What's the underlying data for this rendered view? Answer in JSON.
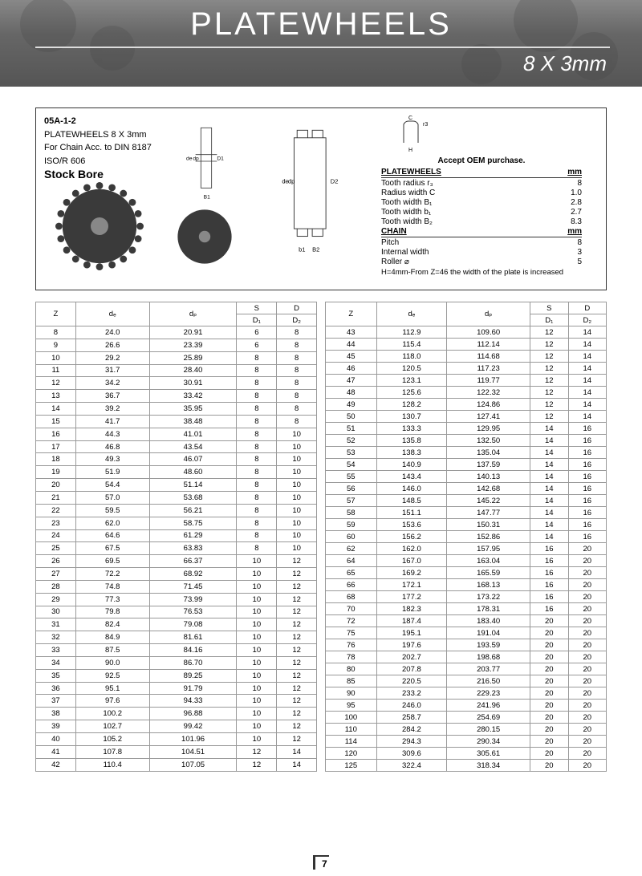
{
  "header": {
    "title": "PLATEWHEELS",
    "subtitle": "8 X 3mm"
  },
  "info": {
    "code": "05A-1-2",
    "line1": "PLATEWHEELS 8 X 3mm",
    "line2": "For Chain Acc. to DIN 8187",
    "line3": "ISO/R 606",
    "stockbore": "Stock Bore"
  },
  "specs": {
    "accept": "Accept OEM purchase.",
    "hdr1": "PLATEWHEELS",
    "hdr1u": "mm",
    "rows1": [
      {
        "k": "Tooth radius r₃",
        "v": "8"
      },
      {
        "k": "Radius width C",
        "v": "1.0"
      },
      {
        "k": "Tooth width B₁",
        "v": "2.8"
      },
      {
        "k": "Tooth width b₁",
        "v": "2.7"
      },
      {
        "k": "Tooth width B₂",
        "v": "8.3"
      }
    ],
    "hdr2": "CHAIN",
    "hdr2u": "mm",
    "rows2": [
      {
        "k": "Pitch",
        "v": "8"
      },
      {
        "k": "Internal width",
        "v": "3"
      },
      {
        "k": "Roller ⌀",
        "v": "5"
      }
    ],
    "note": "H=4mm-From Z=46 the width of the plate is increased"
  },
  "table_headers": {
    "z": "Z",
    "de": "dₑ",
    "dp": "dₚ",
    "s": "S",
    "d": "D",
    "d1": "D₁",
    "d2": "D₂"
  },
  "table1_breaks": [
    13,
    18,
    23,
    28,
    33,
    38
  ],
  "table1": [
    [
      "8",
      "24.0",
      "20.91",
      "6",
      "8"
    ],
    [
      "9",
      "26.6",
      "23.39",
      "6",
      "8"
    ],
    [
      "10",
      "29.2",
      "25.89",
      "8",
      "8"
    ],
    [
      "11",
      "31.7",
      "28.40",
      "8",
      "8"
    ],
    [
      "12",
      "34.2",
      "30.91",
      "8",
      "8"
    ],
    [
      "13",
      "36.7",
      "33.42",
      "8",
      "8"
    ],
    [
      "14",
      "39.2",
      "35.95",
      "8",
      "8"
    ],
    [
      "15",
      "41.7",
      "38.48",
      "8",
      "8"
    ],
    [
      "16",
      "44.3",
      "41.01",
      "8",
      "10"
    ],
    [
      "17",
      "46.8",
      "43.54",
      "8",
      "10"
    ],
    [
      "18",
      "49.3",
      "46.07",
      "8",
      "10"
    ],
    [
      "19",
      "51.9",
      "48.60",
      "8",
      "10"
    ],
    [
      "20",
      "54.4",
      "51.14",
      "8",
      "10"
    ],
    [
      "21",
      "57.0",
      "53.68",
      "8",
      "10"
    ],
    [
      "22",
      "59.5",
      "56.21",
      "8",
      "10"
    ],
    [
      "23",
      "62.0",
      "58.75",
      "8",
      "10"
    ],
    [
      "24",
      "64.6",
      "61.29",
      "8",
      "10"
    ],
    [
      "25",
      "67.5",
      "63.83",
      "8",
      "10"
    ],
    [
      "26",
      "69.5",
      "66.37",
      "10",
      "12"
    ],
    [
      "27",
      "72.2",
      "68.92",
      "10",
      "12"
    ],
    [
      "28",
      "74.8",
      "71.45",
      "10",
      "12"
    ],
    [
      "29",
      "77.3",
      "73.99",
      "10",
      "12"
    ],
    [
      "30",
      "79.8",
      "76.53",
      "10",
      "12"
    ],
    [
      "31",
      "82.4",
      "79.08",
      "10",
      "12"
    ],
    [
      "32",
      "84.9",
      "81.61",
      "10",
      "12"
    ],
    [
      "33",
      "87.5",
      "84.16",
      "10",
      "12"
    ],
    [
      "34",
      "90.0",
      "86.70",
      "10",
      "12"
    ],
    [
      "35",
      "92.5",
      "89.25",
      "10",
      "12"
    ],
    [
      "36",
      "95.1",
      "91.79",
      "10",
      "12"
    ],
    [
      "37",
      "97.6",
      "94.33",
      "10",
      "12"
    ],
    [
      "38",
      "100.2",
      "96.88",
      "10",
      "12"
    ],
    [
      "39",
      "102.7",
      "99.42",
      "10",
      "12"
    ],
    [
      "40",
      "105.2",
      "101.96",
      "10",
      "12"
    ],
    [
      "41",
      "107.8",
      "104.51",
      "12",
      "14"
    ],
    [
      "42",
      "110.4",
      "107.05",
      "12",
      "14"
    ]
  ],
  "table2_breaks": [
    48,
    53,
    58,
    65,
    75,
    90
  ],
  "table2": [
    [
      "43",
      "112.9",
      "109.60",
      "12",
      "14"
    ],
    [
      "44",
      "115.4",
      "112.14",
      "12",
      "14"
    ],
    [
      "45",
      "118.0",
      "114.68",
      "12",
      "14"
    ],
    [
      "46",
      "120.5",
      "117.23",
      "12",
      "14"
    ],
    [
      "47",
      "123.1",
      "119.77",
      "12",
      "14"
    ],
    [
      "48",
      "125.6",
      "122.32",
      "12",
      "14"
    ],
    [
      "49",
      "128.2",
      "124.86",
      "12",
      "14"
    ],
    [
      "50",
      "130.7",
      "127.41",
      "12",
      "14"
    ],
    [
      "51",
      "133.3",
      "129.95",
      "14",
      "16"
    ],
    [
      "52",
      "135.8",
      "132.50",
      "14",
      "16"
    ],
    [
      "53",
      "138.3",
      "135.04",
      "14",
      "16"
    ],
    [
      "54",
      "140.9",
      "137.59",
      "14",
      "16"
    ],
    [
      "55",
      "143.4",
      "140.13",
      "14",
      "16"
    ],
    [
      "56",
      "146.0",
      "142.68",
      "14",
      "16"
    ],
    [
      "57",
      "148.5",
      "145.22",
      "14",
      "16"
    ],
    [
      "58",
      "151.1",
      "147.77",
      "14",
      "16"
    ],
    [
      "59",
      "153.6",
      "150.31",
      "14",
      "16"
    ],
    [
      "60",
      "156.2",
      "152.86",
      "14",
      "16"
    ],
    [
      "62",
      "162.0",
      "157.95",
      "16",
      "20"
    ],
    [
      "64",
      "167.0",
      "163.04",
      "16",
      "20"
    ],
    [
      "65",
      "169.2",
      "165.59",
      "16",
      "20"
    ],
    [
      "66",
      "172.1",
      "168.13",
      "16",
      "20"
    ],
    [
      "68",
      "177.2",
      "173.22",
      "16",
      "20"
    ],
    [
      "70",
      "182.3",
      "178.31",
      "16",
      "20"
    ],
    [
      "72",
      "187.4",
      "183.40",
      "20",
      "20"
    ],
    [
      "75",
      "195.1",
      "191.04",
      "20",
      "20"
    ],
    [
      "76",
      "197.6",
      "193.59",
      "20",
      "20"
    ],
    [
      "78",
      "202.7",
      "198.68",
      "20",
      "20"
    ],
    [
      "80",
      "207.8",
      "203.77",
      "20",
      "20"
    ],
    [
      "85",
      "220.5",
      "216.50",
      "20",
      "20"
    ],
    [
      "90",
      "233.2",
      "229.23",
      "20",
      "20"
    ],
    [
      "95",
      "246.0",
      "241.96",
      "20",
      "20"
    ],
    [
      "100",
      "258.7",
      "254.69",
      "20",
      "20"
    ],
    [
      "110",
      "284.2",
      "280.15",
      "20",
      "20"
    ],
    [
      "114",
      "294.3",
      "290.34",
      "20",
      "20"
    ],
    [
      "120",
      "309.6",
      "305.61",
      "20",
      "20"
    ],
    [
      "125",
      "322.4",
      "318.34",
      "20",
      "20"
    ]
  ],
  "page": "7",
  "diagram_labels": {
    "de": "de",
    "dp": "dp",
    "d1": "D1",
    "d2": "D2",
    "b1": "B1",
    "b1l": "b1",
    "b2": "B2",
    "c": "C",
    "r3": "r3",
    "h": "H"
  },
  "colors": {
    "header_bg": "#666",
    "border": "#333",
    "grid": "#999",
    "sprocket": "#3a3a3a"
  }
}
